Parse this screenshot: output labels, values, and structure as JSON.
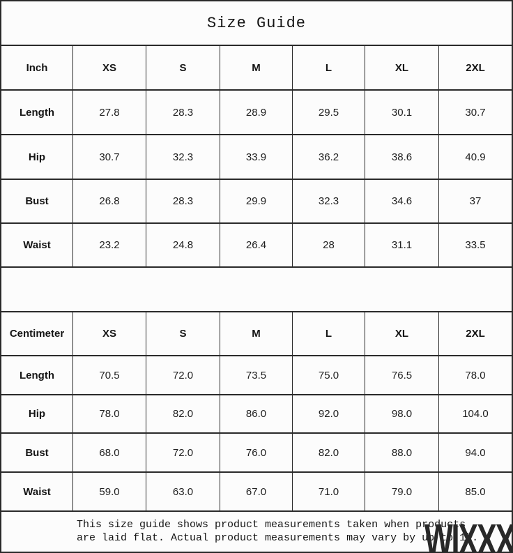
{
  "title": "Size Guide",
  "sizes": [
    "XS",
    "S",
    "M",
    "L",
    "XL",
    "2XL"
  ],
  "inch_table": {
    "unit_label": "Inch",
    "rows": [
      {
        "label": "Length",
        "values": [
          "27.8",
          "28.3",
          "28.9",
          "29.5",
          "30.1",
          "30.7"
        ]
      },
      {
        "label": "Hip",
        "values": [
          "30.7",
          "32.3",
          "33.9",
          "36.2",
          "38.6",
          "40.9"
        ]
      },
      {
        "label": "Bust",
        "values": [
          "26.8",
          "28.3",
          "29.9",
          "32.3",
          "34.6",
          "37"
        ]
      },
      {
        "label": "Waist",
        "values": [
          "23.2",
          "24.8",
          "26.4",
          "28",
          "31.1",
          "33.5"
        ]
      }
    ]
  },
  "cm_table": {
    "unit_label": "Centimeter",
    "rows": [
      {
        "label": "Length",
        "values": [
          "70.5",
          "72.0",
          "73.5",
          "75.0",
          "76.5",
          "78.0"
        ]
      },
      {
        "label": "Hip",
        "values": [
          "78.0",
          "82.0",
          "86.0",
          "92.0",
          "98.0",
          "104.0"
        ]
      },
      {
        "label": "Bust",
        "values": [
          "68.0",
          "72.0",
          "76.0",
          "82.0",
          "88.0",
          "94.0"
        ]
      },
      {
        "label": "Waist",
        "values": [
          "59.0",
          "63.0",
          "67.0",
          "71.0",
          "79.0",
          "85.0"
        ]
      }
    ]
  },
  "footer": {
    "line1": "This size guide shows product measurements taken when products",
    "line2": "are laid flat. Actual product measurements may vary by up to 1″."
  },
  "watermark": "WIXXX",
  "colors": {
    "border": "#2a2a2a",
    "text": "#1a1a1a",
    "background": "#fcfcfc",
    "watermark": "#282828"
  }
}
